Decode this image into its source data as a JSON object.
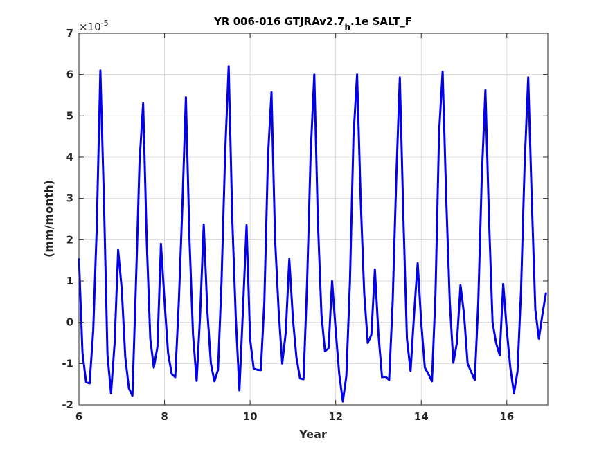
{
  "chart_data": {
    "type": "line",
    "title_main": "YR 006-016 GTJRAv2.7",
    "title_sub": "h",
    "title_rest": ".1e SALT_F",
    "xlabel": "Year",
    "ylabel": "(mm/month)",
    "y_multiplier_base": "×10",
    "y_multiplier_exp": "-5",
    "xlim": [
      6,
      16.9583
    ],
    "ylim": [
      -2,
      7
    ],
    "xticks": [
      "6",
      "8",
      "10",
      "12",
      "14",
      "16"
    ],
    "yticks": [
      "-2",
      "-1",
      "0",
      "1",
      "2",
      "3",
      "4",
      "5",
      "6",
      "7"
    ],
    "grid": true,
    "colors": {
      "line": "#0000ee",
      "grid": "#dcdcdc",
      "axes": "#262626"
    },
    "series": [
      {
        "x_start": 6.0,
        "x_step": 0.083333,
        "values": [
          1.55,
          -0.75,
          -1.45,
          -1.48,
          -0.2,
          2.3,
          6.1,
          3.0,
          -0.8,
          -1.72,
          -0.5,
          1.75,
          0.8,
          -0.85,
          -1.6,
          -1.78,
          1.0,
          3.9,
          5.3,
          2.0,
          -0.4,
          -1.1,
          -0.6,
          1.9,
          0.5,
          -0.75,
          -1.25,
          -1.33,
          0.5,
          2.8,
          5.45,
          2.0,
          -0.3,
          -1.42,
          0.2,
          2.37,
          0.3,
          -1.0,
          -1.43,
          -1.15,
          1.0,
          4.1,
          6.2,
          2.5,
          0.1,
          -1.65,
          0.3,
          2.35,
          -0.4,
          -1.12,
          -1.15,
          -1.16,
          0.5,
          4.0,
          5.57,
          2.0,
          0.3,
          -1.0,
          -0.25,
          1.53,
          0.1,
          -0.85,
          -1.36,
          -1.38,
          1.0,
          4.1,
          6.0,
          2.5,
          0.2,
          -0.7,
          -0.63,
          1.0,
          -0.2,
          -1.25,
          -1.92,
          -1.3,
          1.0,
          4.5,
          6.0,
          3.0,
          0.7,
          -0.5,
          -0.3,
          1.28,
          -0.3,
          -1.33,
          -1.32,
          -1.4,
          0.5,
          3.5,
          5.93,
          2.5,
          -0.4,
          -1.18,
          0.2,
          1.43,
          0.0,
          -1.1,
          -1.25,
          -1.43,
          0.7,
          4.6,
          6.07,
          3.0,
          0.5,
          -0.98,
          -0.5,
          0.9,
          0.2,
          -1.0,
          -1.2,
          -1.4,
          0.5,
          3.6,
          5.62,
          2.5,
          0.0,
          -0.5,
          -0.8,
          0.93,
          -0.2,
          -1.1,
          -1.72,
          -1.2,
          0.8,
          3.8,
          5.93,
          3.0,
          0.3,
          -0.4,
          0.2,
          0.72
        ]
      }
    ]
  }
}
